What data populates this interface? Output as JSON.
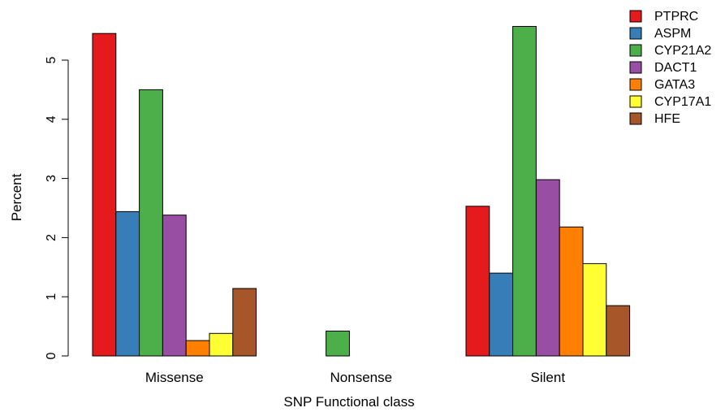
{
  "chart_data": {
    "type": "bar",
    "title": "",
    "xlabel": "SNP Functional class",
    "ylabel": "Percent",
    "categories": [
      "Missense",
      "Nonsense",
      "Silent"
    ],
    "ylim": [
      0,
      5.6
    ],
    "yticks": [
      "0",
      "1",
      "2",
      "3",
      "4",
      "5"
    ],
    "grid": false,
    "legend_position": "top-right",
    "series": [
      {
        "name": "PTPRC",
        "color": "#e41a1c",
        "values": [
          5.45,
          0.0,
          2.53
        ]
      },
      {
        "name": "ASPM",
        "color": "#377eb8",
        "values": [
          2.44,
          0.0,
          1.4
        ]
      },
      {
        "name": "CYP21A2",
        "color": "#4daf4a",
        "values": [
          4.5,
          0.42,
          5.57
        ]
      },
      {
        "name": "DACT1",
        "color": "#984ea3",
        "values": [
          2.38,
          0.0,
          2.98
        ]
      },
      {
        "name": "GATA3",
        "color": "#ff7f00",
        "values": [
          0.26,
          0.0,
          2.18
        ]
      },
      {
        "name": "CYP17A1",
        "color": "#ffff33",
        "values": [
          0.38,
          0.0,
          1.56
        ]
      },
      {
        "name": "HFE",
        "color": "#a65628",
        "values": [
          1.14,
          0.0,
          0.85
        ]
      }
    ]
  }
}
